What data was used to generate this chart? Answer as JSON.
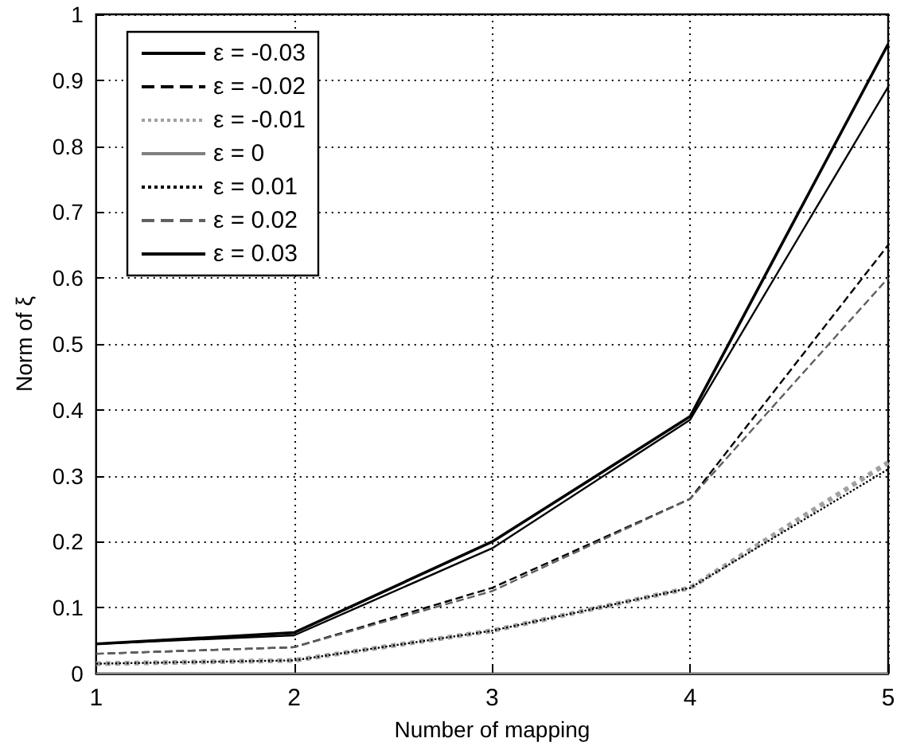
{
  "chart_data": {
    "type": "line",
    "xlabel": "Number of mapping",
    "ylabel": "Norm of ξ",
    "x": [
      1,
      2,
      3,
      4,
      5
    ],
    "xlim": [
      1,
      5
    ],
    "xticks": [
      1,
      2,
      3,
      4,
      5
    ],
    "ylim": [
      0,
      1
    ],
    "yticks": [
      0,
      0.1,
      0.2,
      0.3,
      0.4,
      0.5,
      0.6,
      0.7,
      0.8,
      0.9,
      1
    ],
    "grid": true,
    "legend": "top left",
    "marker": "none",
    "series": [
      {
        "name": "ε = -0.03",
        "color": "#000000",
        "line_style": "solid",
        "values": [
          0.045,
          0.062,
          0.2,
          0.39,
          0.955
        ]
      },
      {
        "name": "ε = -0.02",
        "color": "#000000",
        "line_style": "dashed",
        "values": [
          0.03,
          0.04,
          0.13,
          0.265,
          0.65
        ]
      },
      {
        "name": "ε = -0.01",
        "color": "#a0a0a0",
        "line_style": "dotted",
        "values": [
          0.015,
          0.02,
          0.065,
          0.13,
          0.32
        ]
      },
      {
        "name": "ε = 0",
        "color": "#808080",
        "line_style": "solid",
        "values": [
          0,
          0,
          0,
          0,
          0
        ]
      },
      {
        "name": "ε = 0.01",
        "color": "#000000",
        "line_style": "dotted",
        "values": [
          0.015,
          0.02,
          0.065,
          0.13,
          0.31
        ]
      },
      {
        "name": "ε = 0.02",
        "color": "#606060",
        "line_style": "dashed",
        "values": [
          0.03,
          0.04,
          0.125,
          0.265,
          0.6
        ]
      },
      {
        "name": "ε = 0.03",
        "color": "#000000",
        "line_style": "solid",
        "values": [
          0.045,
          0.058,
          0.19,
          0.385,
          0.89
        ]
      }
    ]
  }
}
